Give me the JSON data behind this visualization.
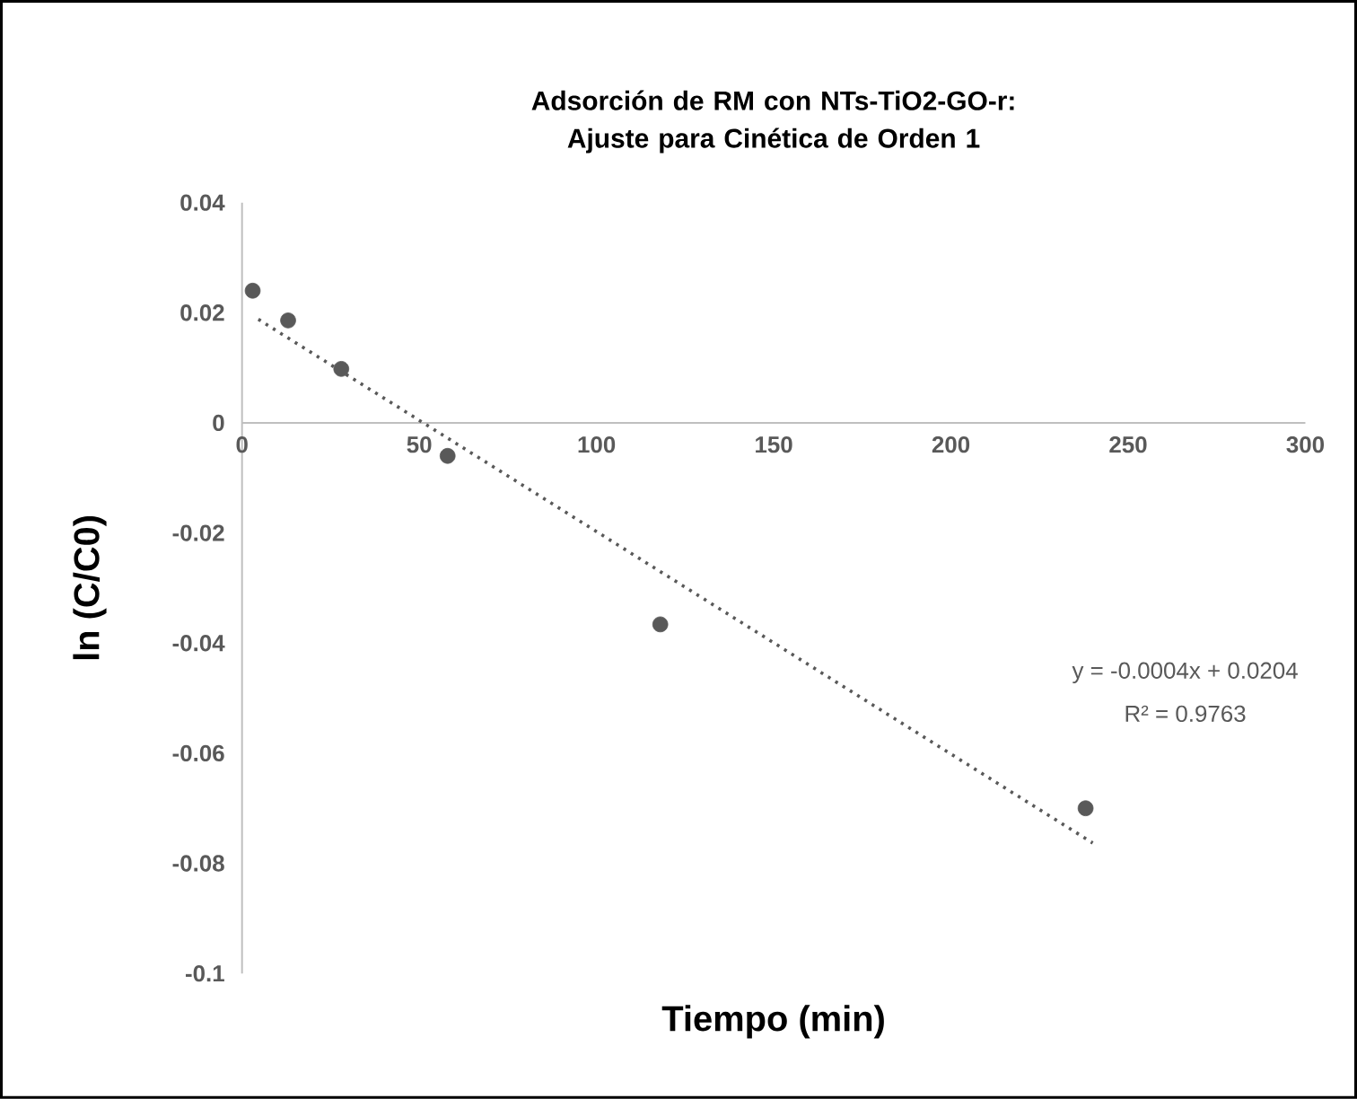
{
  "chart_data": {
    "type": "scatter",
    "title": "Adsorción de RM con NTs-TiO2-GO-r: Ajuste para Cinética de Orden 1",
    "xlabel": "Tiempo (min)",
    "ylabel": "ln (C/C0)",
    "series": [
      {
        "color": "#595959",
        "marker": "circle",
        "x": [
          3,
          13,
          28,
          58,
          118,
          238
        ],
        "values": [
          0.024,
          0.0186,
          0.0098,
          -0.006,
          -0.0366,
          -0.07
        ]
      },
      {
        "type": "line",
        "color": "#595959",
        "line_style": "dotted",
        "marker": "none",
        "x": [
          4.6,
          240
        ],
        "values": [
          0.0188,
          -0.0763
        ]
      }
    ],
    "xlim": [
      0,
      300
    ],
    "xticks": [
      0,
      50,
      100,
      150,
      200,
      250,
      300
    ],
    "ylim": [
      -0.1,
      0.04
    ],
    "yticks": [
      -0.1,
      -0.08,
      -0.06,
      -0.04,
      -0.02,
      0,
      0.02,
      0.04
    ],
    "grid": false,
    "annotations": [
      "y = -0.0004x + 0.0204",
      "R² = 0.9763"
    ]
  }
}
